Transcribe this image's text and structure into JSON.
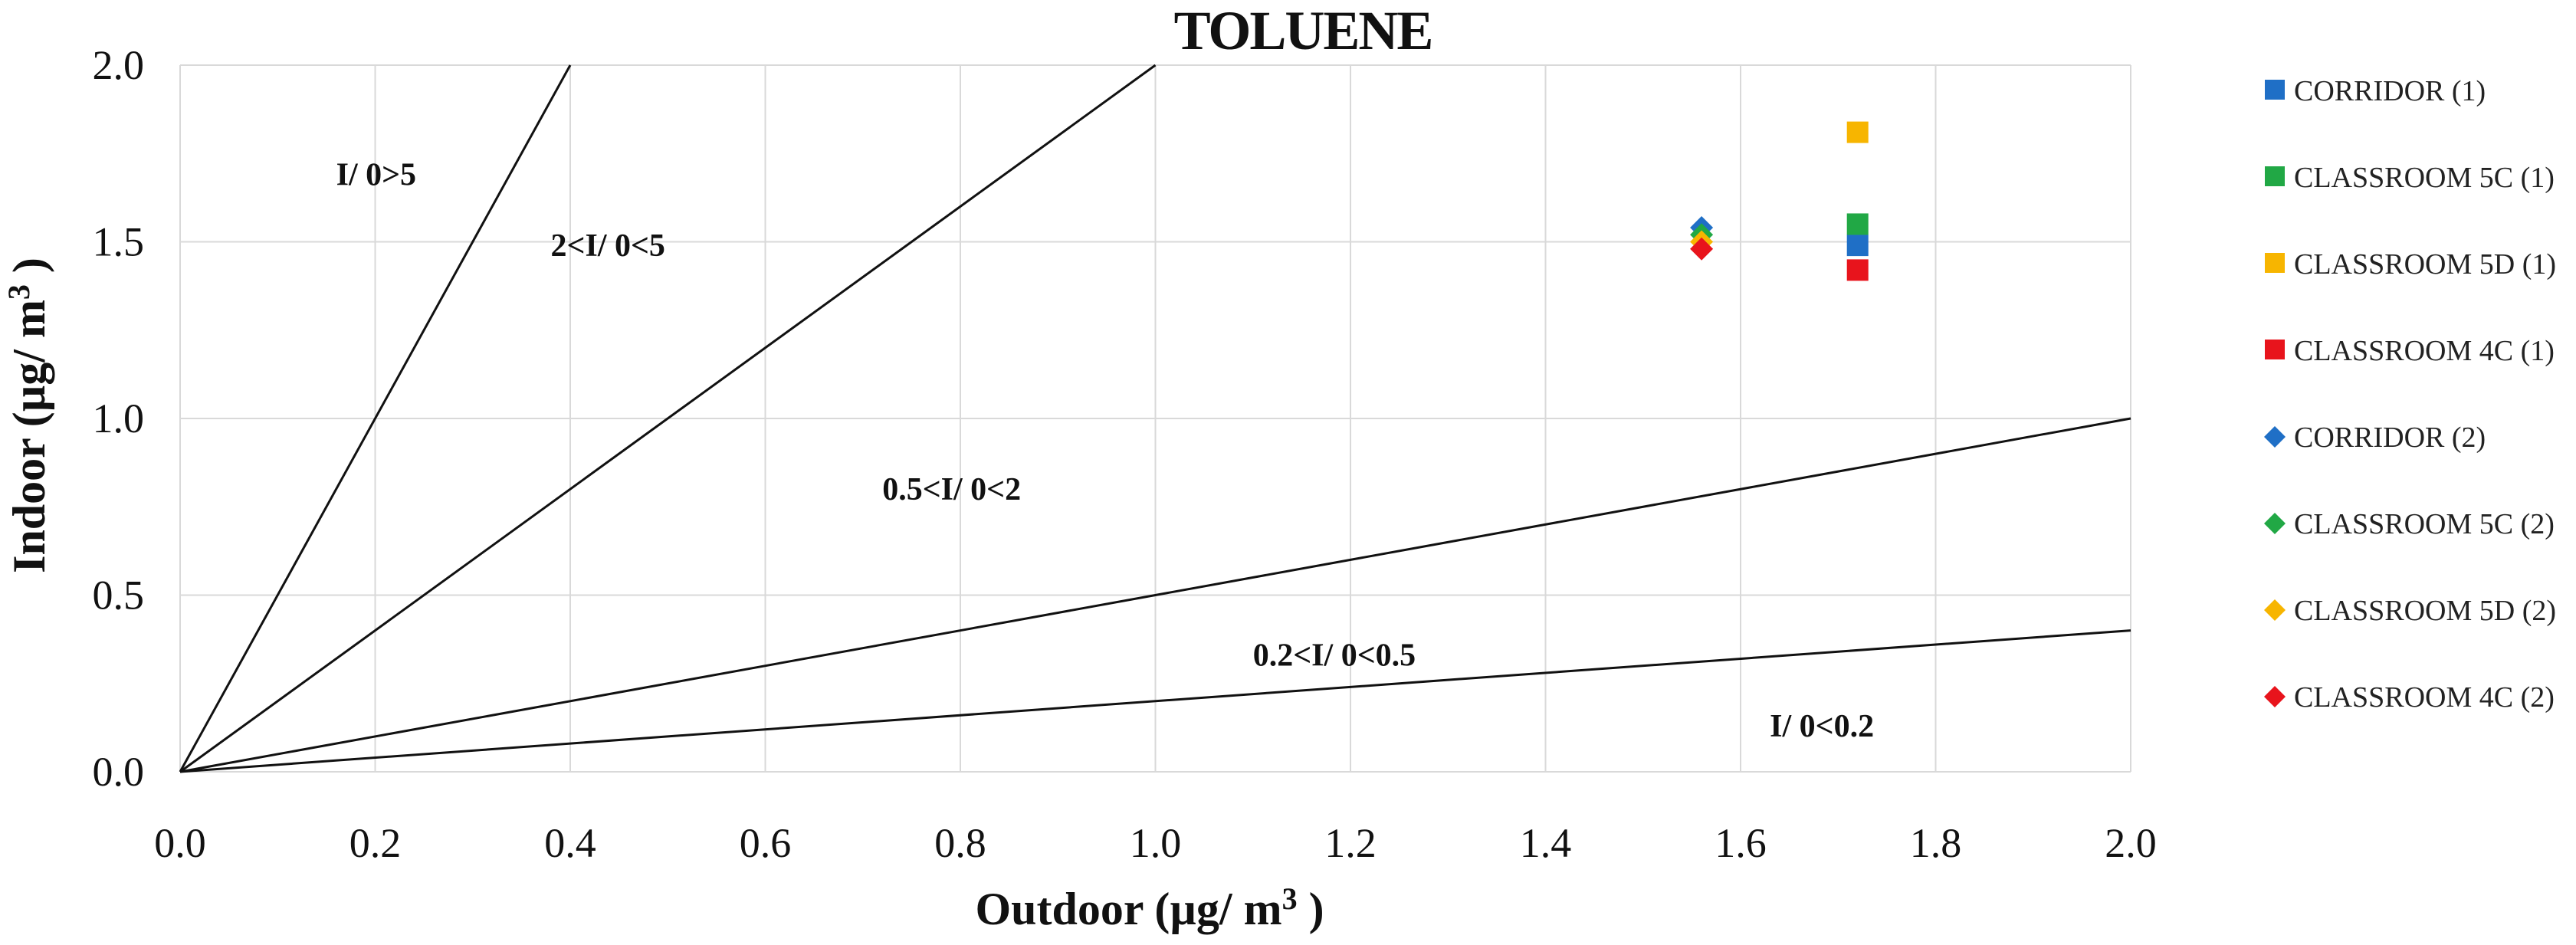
{
  "chart_data": {
    "type": "scatter",
    "title": "TOLUENE",
    "xlabel_main": "Outdoor (µg/ m",
    "xlabel_sup": "3",
    "xlabel_end": " )",
    "ylabel_main": "Indoor (µg/ m",
    "ylabel_sup": "3",
    "ylabel_end": " )",
    "xlim": [
      0,
      2
    ],
    "ylim": [
      0,
      2
    ],
    "x_ticks": [
      "0.0",
      "0.2",
      "0.4",
      "0.6",
      "0.8",
      "1.0",
      "1.2",
      "1.4",
      "1.6",
      "1.8",
      "2.0"
    ],
    "y_ticks": [
      "0.0",
      "0.5",
      "1.0",
      "1.5",
      "2.0"
    ],
    "grid": true,
    "legend_position": "right",
    "reference_lines": [
      {
        "name": "slope-5",
        "slope": 5
      },
      {
        "name": "slope-2",
        "slope": 2
      },
      {
        "name": "slope-0.5",
        "slope": 0.5
      },
      {
        "name": "slope-0.2",
        "slope": 0.2
      }
    ],
    "region_labels": [
      {
        "text": "I/ 0>5",
        "x": 0.16,
        "y": 1.66
      },
      {
        "text": "2<I/ 0<5",
        "x": 0.38,
        "y": 1.46
      },
      {
        "text": "0.5<I/ 0<2",
        "x": 0.72,
        "y": 0.77
      },
      {
        "text": "0.2<I/ 0<0.5",
        "x": 1.1,
        "y": 0.3
      },
      {
        "text": "I/ 0<0.2",
        "x": 1.63,
        "y": 0.1
      }
    ],
    "series": [
      {
        "name": "CORRIDOR (1)",
        "marker": "square",
        "color": "#1f6fc6",
        "x": 1.72,
        "y": 1.49
      },
      {
        "name": "CLASSROOM 5C (1)",
        "marker": "square",
        "color": "#21a845",
        "x": 1.72,
        "y": 1.55
      },
      {
        "name": "CLASSROOM 5D (1)",
        "marker": "square",
        "color": "#f7b500",
        "x": 1.72,
        "y": 1.81
      },
      {
        "name": "CLASSROOM 4C (1)",
        "marker": "square",
        "color": "#e8141c",
        "x": 1.72,
        "y": 1.42
      },
      {
        "name": "CORRIDOR (2)",
        "marker": "diamond",
        "color": "#1f6fc6",
        "x": 1.56,
        "y": 1.54
      },
      {
        "name": "CLASSROOM 5C (2)",
        "marker": "diamond",
        "color": "#21a845",
        "x": 1.56,
        "y": 1.52
      },
      {
        "name": "CLASSROOM 5D (2)",
        "marker": "diamond",
        "color": "#f7b500",
        "x": 1.56,
        "y": 1.5
      },
      {
        "name": "CLASSROOM 4C (2)",
        "marker": "diamond",
        "color": "#e8141c",
        "x": 1.56,
        "y": 1.48
      }
    ]
  }
}
